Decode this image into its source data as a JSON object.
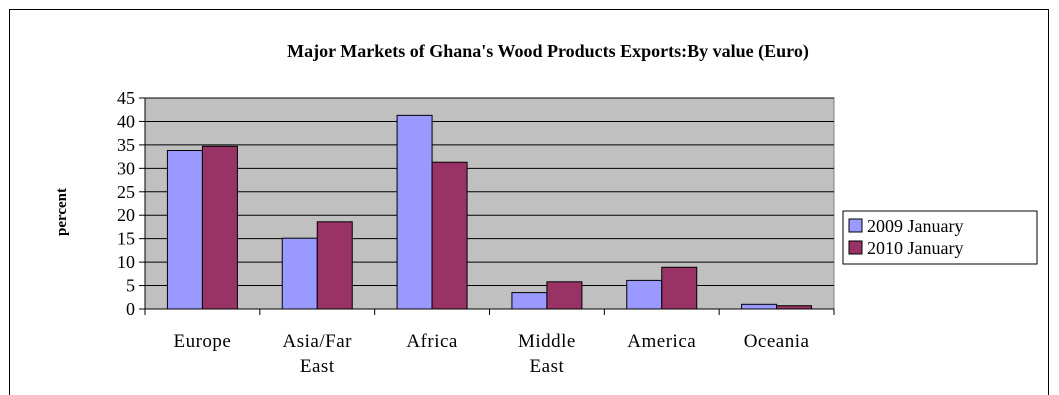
{
  "chart_data": {
    "type": "bar",
    "title": "Major Markets of Ghana's Wood Products Exports:By value (Euro)",
    "xlabel": "",
    "ylabel": "percent",
    "ylim": [
      0,
      45
    ],
    "yticks": [
      0,
      5,
      10,
      15,
      20,
      25,
      30,
      35,
      40,
      45
    ],
    "categories": [
      [
        "Europe"
      ],
      [
        "Asia/Far",
        "East"
      ],
      [
        "Africa"
      ],
      [
        "Middle",
        "East"
      ],
      [
        "America"
      ],
      [
        "Oceania"
      ]
    ],
    "series": [
      {
        "name": "2009 January",
        "values": [
          33.8,
          15.1,
          41.3,
          3.5,
          6.1,
          1.0
        ],
        "color": "#9999ff"
      },
      {
        "name": "2010 January",
        "values": [
          34.7,
          18.6,
          31.3,
          5.8,
          8.9,
          0.7
        ],
        "color": "#993366"
      }
    ],
    "plot_background": "#c0c0c0",
    "grid": true,
    "legend_position": "right"
  }
}
